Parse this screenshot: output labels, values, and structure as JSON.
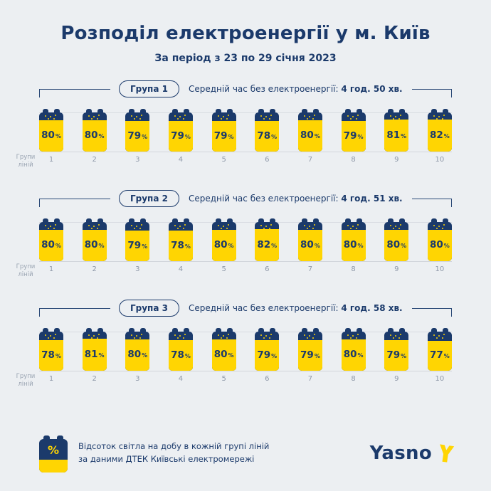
{
  "page": {
    "title": "Розподіл електроенергії у м. Київ",
    "subtitle": "За період з 23 по 29 січня 2023"
  },
  "labels": {
    "percent_sign": "%"
  },
  "groups": [
    {
      "label": "Група 1",
      "avg_prefix": "Середній час без електроенергії:",
      "avg_time": "4 год. 50 хв.",
      "axis_label_line1": "Групи",
      "axis_label_line2": "ліній"
    },
    {
      "label": "Група 2",
      "avg_prefix": "Середній час без електроенергії:",
      "avg_time": "4 год. 51 хв.",
      "axis_label_line1": "Групи",
      "axis_label_line2": "ліній"
    },
    {
      "label": "Група 3",
      "avg_prefix": "Середній час без електроенергії:",
      "avg_time": "4 год. 58 хв.",
      "axis_label_line1": "Групи",
      "axis_label_line2": "ліній"
    }
  ],
  "chart_data": [
    {
      "type": "bar",
      "title": "Група 1",
      "annotation": "Середній час без електроенергії: 4 год. 50 хв.",
      "categories": [
        "1",
        "2",
        "3",
        "4",
        "5",
        "6",
        "7",
        "8",
        "9",
        "10"
      ],
      "values": [
        80,
        80,
        79,
        79,
        79,
        78,
        80,
        79,
        81,
        82
      ],
      "xlabel": "Групи ліній",
      "ylabel": "% світла на добу",
      "ylim": [
        0,
        100
      ],
      "grid": true,
      "legend": false
    },
    {
      "type": "bar",
      "title": "Група 2",
      "annotation": "Середній час без електроенергії: 4 год. 51 хв.",
      "categories": [
        "1",
        "2",
        "3",
        "4",
        "5",
        "6",
        "7",
        "8",
        "9",
        "10"
      ],
      "values": [
        80,
        80,
        79,
        78,
        80,
        82,
        80,
        80,
        80,
        80
      ],
      "xlabel": "Групи ліній",
      "ylabel": "% світла на добу",
      "ylim": [
        0,
        100
      ],
      "grid": true,
      "legend": false
    },
    {
      "type": "bar",
      "title": "Група 3",
      "annotation": "Середній час без електроенергії: 4 год. 58 хв.",
      "categories": [
        "1",
        "2",
        "3",
        "4",
        "5",
        "6",
        "7",
        "8",
        "9",
        "10"
      ],
      "values": [
        78,
        81,
        80,
        78,
        80,
        79,
        79,
        80,
        79,
        77
      ],
      "xlabel": "Групи ліній",
      "ylabel": "% світла на добу",
      "ylim": [
        0,
        100
      ],
      "grid": true,
      "legend": false
    }
  ],
  "footer": {
    "icon_symbol": "%",
    "note_line1": "Відсоток світла на добу в кожній групі ліній",
    "note_line2": "за даними ДТЕК Київські електромережі",
    "logo_text": "Yasno"
  },
  "colors": {
    "navy": "#1b3a6b",
    "yellow": "#ffd502",
    "background": "#eceff2"
  }
}
